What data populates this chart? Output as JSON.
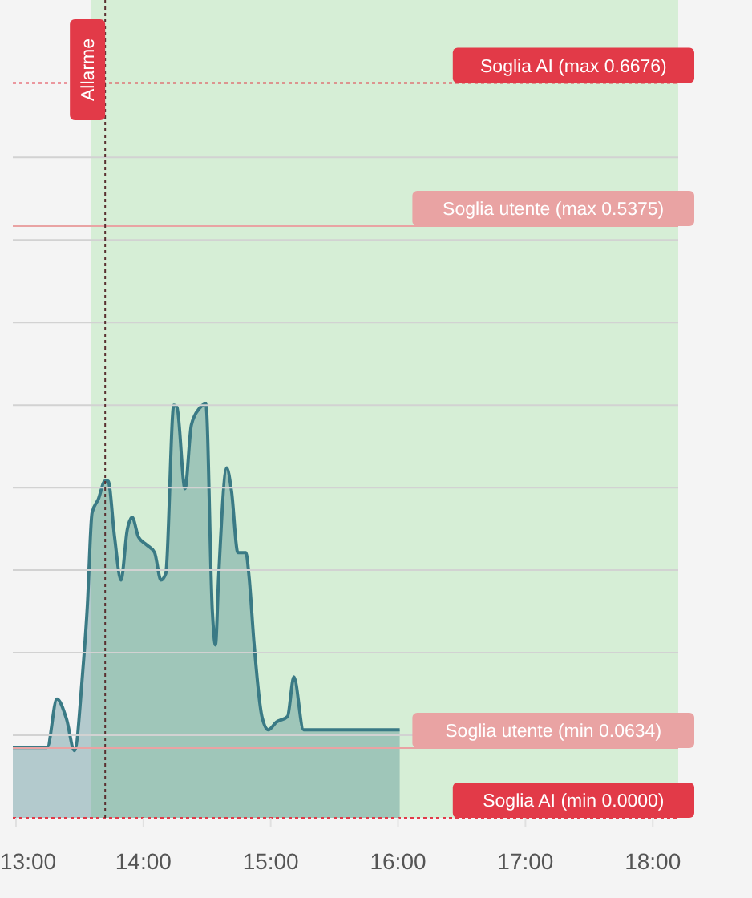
{
  "chart_data": {
    "type": "area",
    "xlim": [
      12.975,
      18.2
    ],
    "xticks": [
      {
        "value": 13,
        "label": "13:00"
      },
      {
        "value": 14,
        "label": "14:00"
      },
      {
        "value": 15,
        "label": "15:00"
      },
      {
        "value": 16,
        "label": "16:00"
      },
      {
        "value": 17,
        "label": "17:00"
      },
      {
        "value": 18,
        "label": "18:00"
      }
    ],
    "ylim": [
      0,
      0.743
    ],
    "yticks": [
      {
        "value": 0.075,
        "label": null
      },
      {
        "value": 0.15,
        "label": null
      },
      {
        "value": 0.225,
        "label": null
      },
      {
        "value": 0.3,
        "label": null
      },
      {
        "value": 0.375,
        "label": null
      },
      {
        "value": 0.45,
        "label": null
      },
      {
        "value": 0.525,
        "label": null
      },
      {
        "value": 0.6,
        "label": null
      }
    ],
    "tick_labels": "x",
    "grid": "y",
    "series": [
      {
        "color": "#3a7a85",
        "x": [
          12.975,
          13.245,
          13.321,
          13.396,
          13.459,
          13.522,
          13.56,
          13.597,
          13.648,
          13.698,
          13.723,
          13.774,
          13.824,
          13.874,
          13.912,
          13.962,
          14.025,
          14.088,
          14.138,
          14.176,
          14.239,
          14.264,
          14.327,
          14.377,
          14.44,
          14.491,
          14.541,
          14.566,
          14.591,
          14.654,
          14.692,
          14.742,
          14.805,
          14.83,
          14.868,
          14.931,
          14.981,
          15.044,
          15.132,
          15.182,
          15.258,
          15.333,
          16.013
        ],
        "values": [
          0.064,
          0.064,
          0.108,
          0.09,
          0.061,
          0.13,
          0.192,
          0.277,
          0.29,
          0.306,
          0.306,
          0.255,
          0.216,
          0.262,
          0.273,
          0.255,
          0.248,
          0.241,
          0.216,
          0.222,
          0.375,
          0.373,
          0.299,
          0.357,
          0.372,
          0.376,
          0.189,
          0.157,
          0.219,
          0.318,
          0.297,
          0.241,
          0.241,
          0.219,
          0.16,
          0.092,
          0.08,
          0.087,
          0.092,
          0.128,
          0.08,
          0.08,
          0.08
        ]
      }
    ],
    "bands": [
      {
        "axis": "x",
        "from": 13.59,
        "to": 18.2,
        "color": "#d6eed6"
      }
    ],
    "ref_lines": [
      {
        "axis": "y",
        "value": 0.6676,
        "label": "Soglia AI (max 0.6676)",
        "color": "#e23a48",
        "line_style": "dotted"
      },
      {
        "axis": "y",
        "value": 0.5375,
        "label": "Soglia utente (max 0.5375)",
        "color": "#e9a3a3",
        "line_style": "solid"
      },
      {
        "axis": "y",
        "value": 0.0634,
        "label": "Soglia utente (min 0.0634)",
        "color": "#e9a3a3",
        "line_style": "solid"
      },
      {
        "axis": "y",
        "value": 0,
        "label": "Soglia AI (min 0.0000)",
        "color": "#e23a48",
        "line_style": "dotted"
      },
      {
        "axis": "x",
        "value": 13.7,
        "label": "Allarme",
        "color": "#5a3030",
        "line_style": "dotted"
      }
    ]
  }
}
